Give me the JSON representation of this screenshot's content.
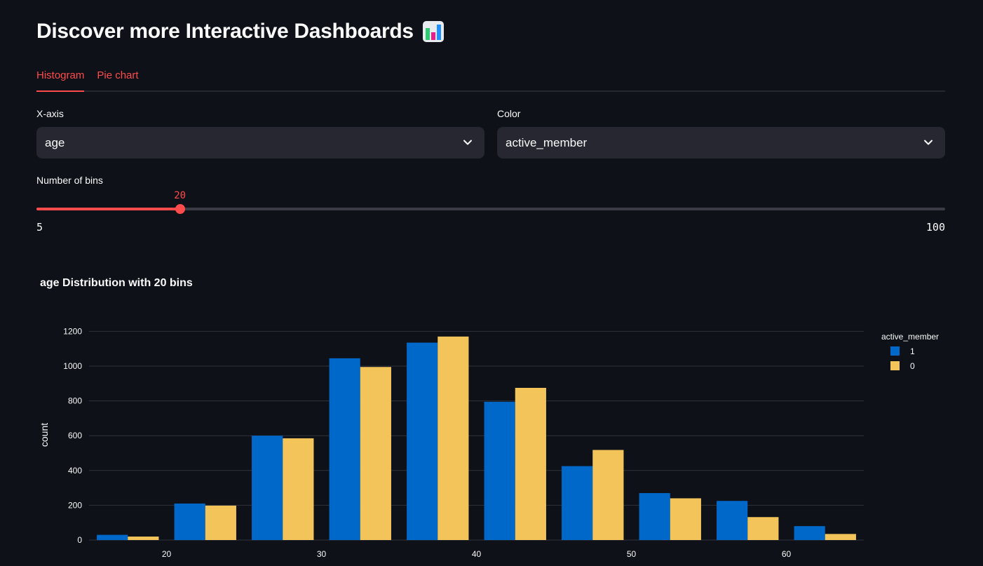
{
  "header": {
    "title": "Discover more Interactive Dashboards",
    "title_icon": "bar-chart-emoji"
  },
  "tabs": [
    {
      "label": "Histogram",
      "active": true
    },
    {
      "label": "Pie chart",
      "active": false
    }
  ],
  "controls": {
    "xaxis": {
      "label": "X-axis",
      "value": "age"
    },
    "color": {
      "label": "Color",
      "value": "active_member"
    },
    "bins": {
      "label": "Number of bins",
      "value": 20,
      "value_text": "20",
      "min": 5,
      "min_text": "5",
      "max": 100,
      "max_text": "100"
    }
  },
  "colors": {
    "accent": "#ff4b4b",
    "series_1": "#0068c9",
    "series_0": "#f2c45a",
    "background": "#0e1117"
  },
  "chart_data": {
    "type": "bar",
    "title": "age Distribution with 20 bins",
    "xlabel": "",
    "ylabel": "count",
    "ylim": [
      0,
      1250
    ],
    "xlim": [
      15,
      65
    ],
    "yticks": [
      0,
      200,
      400,
      600,
      800,
      1000,
      1200
    ],
    "xticks": [
      20,
      30,
      40,
      50,
      60
    ],
    "bin_width": 5,
    "bin_starts": [
      15,
      20,
      25,
      30,
      35,
      40,
      45,
      50,
      55,
      60
    ],
    "grid": true,
    "legend_title": "active_member",
    "legend_position": "top-right",
    "series": [
      {
        "name": "1",
        "color": "#0068c9",
        "values": [
          30,
          210,
          600,
          1045,
          1135,
          795,
          425,
          270,
          225,
          80
        ]
      },
      {
        "name": "0",
        "color": "#f2c45a",
        "values": [
          20,
          198,
          585,
          995,
          1170,
          875,
          518,
          240,
          132,
          35
        ]
      }
    ]
  }
}
